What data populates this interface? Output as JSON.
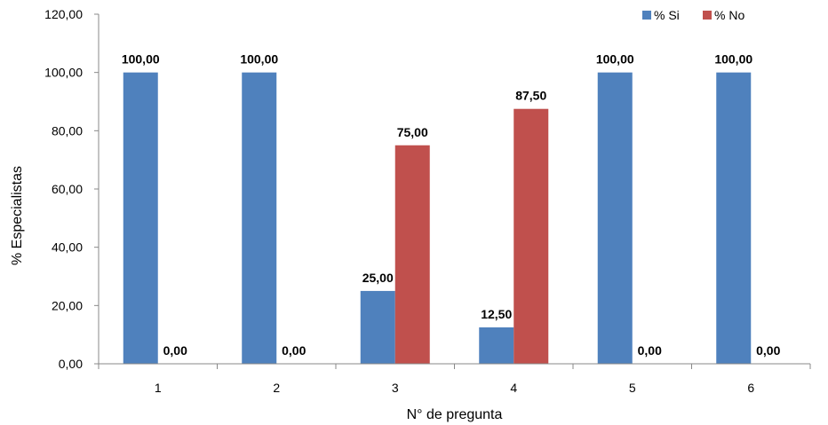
{
  "chart_data": {
    "type": "bar",
    "xlabel": "N° de pregunta",
    "ylabel": "% Especialistas",
    "categories": [
      "1",
      "2",
      "3",
      "4",
      "5",
      "6"
    ],
    "series": [
      {
        "name": "% Si",
        "color": "#4F81BD",
        "values": [
          100,
          100,
          25,
          12.5,
          100,
          100
        ],
        "labels": [
          "100,00",
          "100,00",
          "25,00",
          "12,50",
          "100,00",
          "100,00"
        ]
      },
      {
        "name": "% No",
        "color": "#C0504D",
        "values": [
          0,
          0,
          75,
          87.5,
          0,
          0
        ],
        "labels": [
          "0,00",
          "0,00",
          "75,00",
          "87,50",
          "0,00",
          "0,00"
        ]
      }
    ],
    "ylim": [
      0,
      120
    ],
    "yticks": [
      0,
      20,
      40,
      60,
      80,
      100,
      120
    ],
    "ytick_labels": [
      "0,00",
      "20,00",
      "40,00",
      "60,00",
      "80,00",
      "100,00",
      "120,00"
    ],
    "grid": false,
    "legend": "top-right"
  }
}
